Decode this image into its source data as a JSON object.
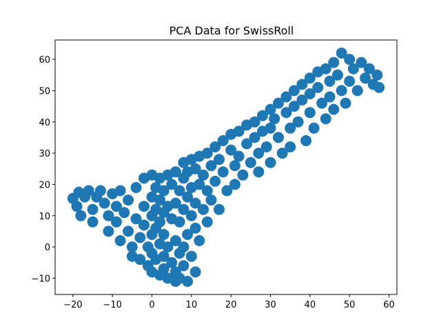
{
  "chart_data": {
    "type": "scatter",
    "title": "PCA Data for SwissRoll",
    "xlabel": "",
    "ylabel": "",
    "xlim": [
      -24.5,
      62
    ],
    "ylim": [
      -15.2,
      66.2
    ],
    "xticks": [
      -20,
      -10,
      0,
      10,
      20,
      30,
      40,
      50,
      60
    ],
    "yticks": [
      -10,
      0,
      10,
      20,
      30,
      40,
      50,
      60
    ],
    "xtick_labels": [
      "−20",
      "−10",
      "0",
      "10",
      "20",
      "30",
      "40",
      "50",
      "60"
    ],
    "ytick_labels": [
      "−10",
      "0",
      "10",
      "20",
      "30",
      "40",
      "50",
      "60"
    ],
    "grid": false,
    "legend": "none",
    "marker_color": "#1f77b4",
    "series": [
      {
        "values_note": "",
        "points": [
          [
            -20,
            15.5
          ],
          [
            -19,
            13
          ],
          [
            -18.5,
            17.5
          ],
          [
            -18,
            10
          ],
          [
            -17,
            16
          ],
          [
            -16,
            18
          ],
          [
            -15,
            12
          ],
          [
            -15,
            8
          ],
          [
            -14,
            16
          ],
          [
            -13,
            18
          ],
          [
            -12,
            14
          ],
          [
            -11,
            10
          ],
          [
            -11,
            5
          ],
          [
            -10,
            17
          ],
          [
            -9,
            13
          ],
          [
            -9,
            8
          ],
          [
            -8,
            2
          ],
          [
            -8,
            18
          ],
          [
            -7,
            11
          ],
          [
            -6,
            15
          ],
          [
            -6,
            5
          ],
          [
            -5,
            0
          ],
          [
            -5,
            -3
          ],
          [
            -4,
            19
          ],
          [
            -4,
            9
          ],
          [
            -3,
            3
          ],
          [
            -3,
            -4
          ],
          [
            -2,
            22
          ],
          [
            -2,
            13
          ],
          [
            -2,
            7
          ],
          [
            -1,
            0
          ],
          [
            -1,
            -6
          ],
          [
            0,
            23
          ],
          [
            0,
            16
          ],
          [
            0,
            10
          ],
          [
            0,
            4
          ],
          [
            0,
            -2
          ],
          [
            0,
            -8
          ],
          [
            1,
            19
          ],
          [
            1,
            12
          ],
          [
            1,
            6
          ],
          [
            1,
            -4
          ],
          [
            2,
            22
          ],
          [
            2,
            15
          ],
          [
            2,
            8
          ],
          [
            2,
            1
          ],
          [
            2,
            -9
          ],
          [
            3,
            18
          ],
          [
            3,
            11
          ],
          [
            3,
            4
          ],
          [
            3,
            -3
          ],
          [
            3,
            -7
          ],
          [
            4,
            23
          ],
          [
            4,
            13
          ],
          [
            4,
            0
          ],
          [
            4,
            -10
          ],
          [
            5,
            20
          ],
          [
            5,
            9
          ],
          [
            5,
            -5
          ],
          [
            6,
            24
          ],
          [
            6,
            14
          ],
          [
            6,
            2
          ],
          [
            6,
            -8
          ],
          [
            6,
            -11
          ],
          [
            7,
            18
          ],
          [
            7,
            8
          ],
          [
            7,
            -2
          ],
          [
            7,
            -10
          ],
          [
            8,
            27
          ],
          [
            8,
            22
          ],
          [
            8,
            12
          ],
          [
            8,
            0
          ],
          [
            8,
            -6
          ],
          [
            9,
            24
          ],
          [
            9,
            16
          ],
          [
            9,
            4
          ],
          [
            9,
            -11
          ],
          [
            10,
            28
          ],
          [
            10,
            19
          ],
          [
            10,
            10
          ],
          [
            10,
            -3
          ],
          [
            11,
            25
          ],
          [
            11,
            14
          ],
          [
            11,
            6
          ],
          [
            11,
            -8
          ],
          [
            12,
            29
          ],
          [
            12,
            20
          ],
          [
            12,
            2
          ],
          [
            13,
            23
          ],
          [
            13,
            12
          ],
          [
            14,
            30
          ],
          [
            14,
            18
          ],
          [
            14,
            8
          ],
          [
            15,
            26
          ],
          [
            15,
            15
          ],
          [
            16,
            32
          ],
          [
            16,
            21
          ],
          [
            17,
            28
          ],
          [
            17,
            12
          ],
          [
            18,
            34
          ],
          [
            18,
            24
          ],
          [
            19,
            18
          ],
          [
            20,
            31
          ],
          [
            20,
            36
          ],
          [
            21,
            26
          ],
          [
            21,
            20
          ],
          [
            22,
            37
          ],
          [
            22,
            29
          ],
          [
            23,
            23
          ],
          [
            24,
            39
          ],
          [
            24,
            33
          ],
          [
            25,
            27
          ],
          [
            26,
            40
          ],
          [
            26,
            35
          ],
          [
            27,
            30
          ],
          [
            27,
            24
          ],
          [
            28,
            42
          ],
          [
            28,
            37
          ],
          [
            29,
            32
          ],
          [
            30,
            44
          ],
          [
            30,
            38
          ],
          [
            30,
            27
          ],
          [
            31,
            41
          ],
          [
            32,
            46
          ],
          [
            32,
            35
          ],
          [
            33,
            30
          ],
          [
            34,
            48
          ],
          [
            34,
            43
          ],
          [
            35,
            38
          ],
          [
            35,
            32
          ],
          [
            36,
            50
          ],
          [
            36,
            45
          ],
          [
            37,
            40
          ],
          [
            38,
            52
          ],
          [
            38,
            47
          ],
          [
            39,
            34
          ],
          [
            40,
            54
          ],
          [
            40,
            49
          ],
          [
            40,
            43
          ],
          [
            41,
            38
          ],
          [
            42,
            56
          ],
          [
            42,
            51
          ],
          [
            43,
            46
          ],
          [
            44,
            57
          ],
          [
            44,
            41
          ],
          [
            45,
            53
          ],
          [
            45,
            48
          ],
          [
            46,
            59
          ],
          [
            46,
            44
          ],
          [
            47,
            55
          ],
          [
            48,
            62
          ],
          [
            48,
            50
          ],
          [
            49,
            46
          ],
          [
            50,
            60
          ],
          [
            50,
            53
          ],
          [
            51,
            57
          ],
          [
            52,
            50
          ],
          [
            53,
            59
          ],
          [
            54,
            54
          ],
          [
            55,
            57
          ],
          [
            56,
            52
          ],
          [
            57,
            55
          ],
          [
            57.5,
            51
          ]
        ]
      }
    ]
  }
}
